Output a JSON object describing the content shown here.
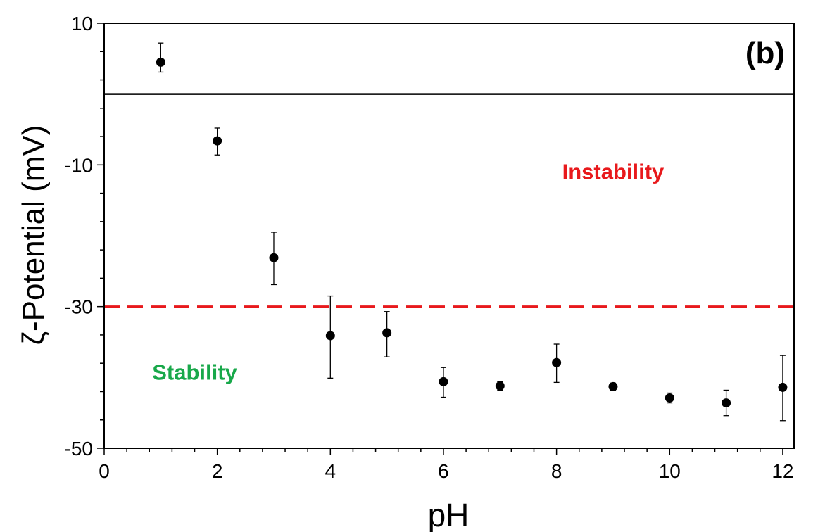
{
  "chart_data": {
    "type": "scatter",
    "panel_label": "(b)",
    "xlabel": "pH",
    "ylabel": "ζ-Potential (mV)",
    "xlim": [
      0,
      12.2
    ],
    "ylim": [
      -50,
      10
    ],
    "xticks": [
      0,
      2,
      4,
      6,
      8,
      10,
      12
    ],
    "yticks": [
      10,
      -10,
      -30,
      -50
    ],
    "xtick_labels": [
      "0",
      "2",
      "4",
      "6",
      "8",
      "10",
      "12"
    ],
    "ytick_labels": [
      "10",
      "-10",
      "-30",
      "-50"
    ],
    "x_minor_step": 0.4,
    "y_minor_step": 4,
    "reference_lines": [
      {
        "name": "zero-line",
        "y": 0,
        "color": "#000000",
        "style": "solid"
      },
      {
        "name": "stability-threshold",
        "y": -30,
        "color": "#e8191c",
        "style": "dashed"
      }
    ],
    "annotations": [
      {
        "name": "instability-label",
        "text": "Instability",
        "x": 9.0,
        "y": -12,
        "color": "#e8191c"
      },
      {
        "name": "stability-label",
        "text": "Stability",
        "x": 1.6,
        "y": -40.3,
        "color": "#18a84a"
      }
    ],
    "series": [
      {
        "name": "zeta-potential",
        "color": "#000000",
        "points": [
          {
            "x": 1,
            "y": 4.5,
            "err_low": 1.4,
            "err_high": 2.7
          },
          {
            "x": 2,
            "y": -6.6,
            "err_low": 2.0,
            "err_high": 1.8
          },
          {
            "x": 3,
            "y": -23.1,
            "err_low": 3.8,
            "err_high": 3.6
          },
          {
            "x": 4,
            "y": -34.1,
            "err_low": 6.0,
            "err_high": 5.6
          },
          {
            "x": 5,
            "y": -33.7,
            "err_low": 3.4,
            "err_high": 3.0
          },
          {
            "x": 6,
            "y": -40.6,
            "err_low": 2.2,
            "err_high": 2.0
          },
          {
            "x": 7,
            "y": -41.2,
            "err_low": 0.6,
            "err_high": 0.6
          },
          {
            "x": 8,
            "y": -37.9,
            "err_low": 2.8,
            "err_high": 2.6
          },
          {
            "x": 9,
            "y": -41.3,
            "err_low": 0.5,
            "err_high": 0.5
          },
          {
            "x": 10,
            "y": -42.9,
            "err_low": 0.7,
            "err_high": 0.7
          },
          {
            "x": 11,
            "y": -43.6,
            "err_low": 1.8,
            "err_high": 1.8
          },
          {
            "x": 12,
            "y": -41.4,
            "err_low": 4.7,
            "err_high": 4.5
          }
        ]
      }
    ]
  }
}
